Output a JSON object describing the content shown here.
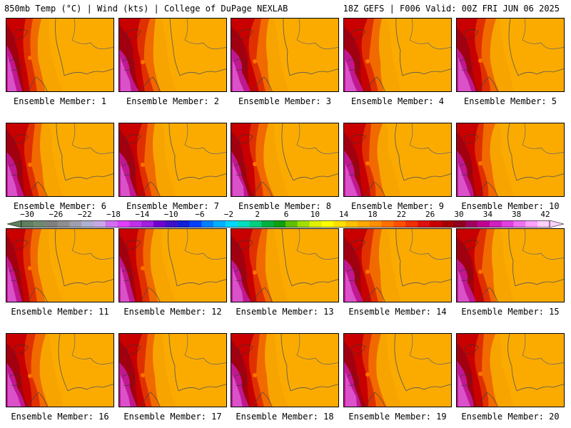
{
  "header": {
    "left": "850mb Temp (°C) | Wind (kts) | College of DuPage NEXLAB",
    "right": "18Z GEFS | F006 Valid: 00Z FRI JUN 06 2025"
  },
  "members": [
    "Ensemble Member: 1",
    "Ensemble Member: 2",
    "Ensemble Member: 3",
    "Ensemble Member: 4",
    "Ensemble Member: 5",
    "Ensemble Member: 6",
    "Ensemble Member: 7",
    "Ensemble Member: 8",
    "Ensemble Member: 9",
    "Ensemble Member: 10",
    "Ensemble Member: 11",
    "Ensemble Member: 12",
    "Ensemble Member: 13",
    "Ensemble Member: 14",
    "Ensemble Member: 15",
    "Ensemble Member: 16",
    "Ensemble Member: 17",
    "Ensemble Member: 18",
    "Ensemble Member: 19",
    "Ensemble Member: 20"
  ],
  "colorbar": {
    "labels": [
      "−30",
      "−26",
      "−22",
      "−18",
      "−14",
      "−10",
      "−6",
      "−2",
      "2",
      "6",
      "10",
      "14",
      "18",
      "22",
      "26",
      "30",
      "34",
      "38",
      "42"
    ],
    "colors": [
      "#5f7f5f",
      "#6f8a6f",
      "#7f7f7f",
      "#8f8f8f",
      "#9f9faf",
      "#b0b0d0",
      "#c8a8e8",
      "#d070f0",
      "#e040ff",
      "#c030e8",
      "#a020e0",
      "#7000d0",
      "#4010c8",
      "#1020d8",
      "#0040ff",
      "#0080ff",
      "#00b0ff",
      "#00d8ff",
      "#00e0c0",
      "#00d080",
      "#00b040",
      "#10a010",
      "#60c000",
      "#a0e000",
      "#e0f000",
      "#ffff00",
      "#ffe000",
      "#ffc000",
      "#ffa800",
      "#ff9000",
      "#ff7000",
      "#ff5000",
      "#f03000",
      "#e01010",
      "#c80000",
      "#a80000",
      "#900020",
      "#a00060",
      "#c00090",
      "#d020c0",
      "#e040e0",
      "#f070f0",
      "#ffa0ff",
      "#ffd0ff"
    ]
  }
}
